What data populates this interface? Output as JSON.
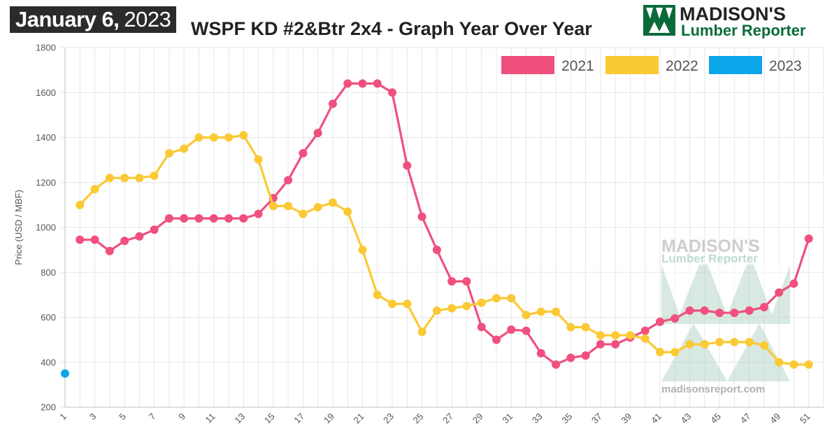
{
  "header": {
    "date_month_day": "January 6,",
    "date_year": "2023",
    "title": "WSPF KD #2&Btr 2x4 - Graph Year Over Year"
  },
  "logo": {
    "line1": "MADISON'S",
    "line2": "Lumber Reporter",
    "brand_color": "#0a6b3a"
  },
  "watermark": {
    "line1": "MADISON'S",
    "line2": "Lumber Reporter",
    "url": "madisonsreport.com",
    "color": "#9cc7b5"
  },
  "chart_data": {
    "type": "line",
    "ylabel": "Price (USD / MBF)",
    "xlabel": "",
    "ylim": [
      200,
      1800
    ],
    "yticks": [
      200,
      400,
      600,
      800,
      1000,
      1200,
      1400,
      1600,
      1800
    ],
    "xlim": [
      1,
      52
    ],
    "xticks": [
      1,
      3,
      5,
      7,
      9,
      11,
      13,
      15,
      17,
      19,
      21,
      23,
      25,
      27,
      29,
      31,
      33,
      35,
      37,
      39,
      41,
      43,
      45,
      47,
      49,
      51
    ],
    "grid": true,
    "legend_position": "top-right",
    "series": [
      {
        "name": "2021",
        "color": "#f0507e",
        "x": [
          2,
          3,
          4,
          5,
          6,
          7,
          8,
          9,
          10,
          11,
          12,
          13,
          14,
          15,
          16,
          17,
          18,
          19,
          20,
          21,
          22,
          23,
          24,
          25,
          26,
          27,
          28,
          29,
          30,
          31,
          32,
          33,
          34,
          35,
          36,
          37,
          38,
          39,
          40,
          41,
          42,
          43,
          44,
          45,
          46,
          47,
          48,
          49,
          50,
          51
        ],
        "values": [
          945,
          945,
          895,
          940,
          960,
          990,
          1040,
          1040,
          1040,
          1040,
          1040,
          1040,
          1060,
          1130,
          1210,
          1330,
          1420,
          1550,
          1640,
          1640,
          1640,
          1600,
          1275,
          1048,
          900,
          760,
          760,
          557,
          500,
          545,
          540,
          440,
          390,
          420,
          430,
          480,
          480,
          510,
          540,
          580,
          595,
          630,
          630,
          620,
          620,
          630,
          645,
          710,
          750,
          950
        ]
      },
      {
        "name": "2022",
        "color": "#fbc934",
        "x": [
          2,
          3,
          4,
          5,
          6,
          7,
          8,
          9,
          10,
          11,
          12,
          13,
          14,
          15,
          16,
          17,
          18,
          19,
          20,
          21,
          22,
          23,
          24,
          25,
          26,
          27,
          28,
          29,
          30,
          31,
          32,
          33,
          34,
          35,
          36,
          37,
          38,
          39,
          40,
          41,
          42,
          43,
          44,
          45,
          46,
          47,
          48,
          49,
          50,
          51
        ],
        "values": [
          1100,
          1170,
          1220,
          1220,
          1220,
          1230,
          1330,
          1350,
          1400,
          1400,
          1400,
          1410,
          1302,
          1095,
          1095,
          1060,
          1090,
          1110,
          1070,
          900,
          700,
          660,
          660,
          535,
          630,
          640,
          650,
          665,
          685,
          685,
          610,
          625,
          625,
          556,
          556,
          520,
          520,
          520,
          505,
          445,
          445,
          480,
          480,
          490,
          490,
          490,
          475,
          400,
          390,
          390
        ]
      },
      {
        "name": "2023",
        "color": "#0ba5e9",
        "x": [
          1
        ],
        "values": [
          350
        ]
      }
    ]
  }
}
